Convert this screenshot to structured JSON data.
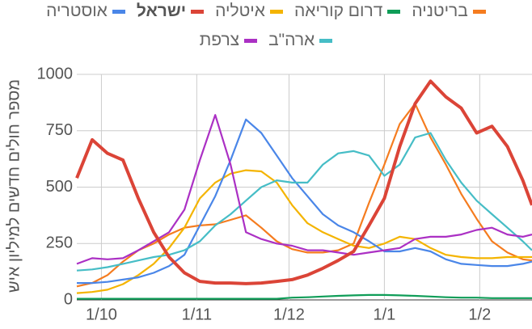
{
  "chart_data": {
    "type": "line",
    "y_axis_label": "מספר חולים חדשים למיליון איש",
    "x": [
      "23/9",
      "28/9",
      "3/10",
      "8/10",
      "13/10",
      "18/10",
      "23/10",
      "28/10",
      "2/11",
      "7/11",
      "12/11",
      "17/11",
      "22/11",
      "27/11",
      "2/12",
      "7/12",
      "12/12",
      "17/12",
      "22/12",
      "27/12",
      "1/1",
      "6/1",
      "11/1",
      "16/1",
      "21/1",
      "26/1",
      "31/1",
      "5/2",
      "10/2",
      "15/2",
      "18/2"
    ],
    "xlim": [
      "23/9",
      "18/2"
    ],
    "xticks": [
      "1/10",
      "1/11",
      "1/12",
      "1/1",
      "1/2"
    ],
    "ylim": [
      0,
      1000
    ],
    "yticks": [
      0,
      250,
      500,
      750,
      1000
    ],
    "grid": true,
    "series": [
      {
        "name": "בריטניה",
        "color": "#f57c1f",
        "values": [
          60,
          75,
          110,
          170,
          220,
          250,
          290,
          320,
          330,
          335,
          355,
          375,
          320,
          260,
          225,
          210,
          210,
          220,
          250,
          430,
          600,
          780,
          870,
          720,
          600,
          470,
          360,
          260,
          210,
          180,
          175
        ]
      },
      {
        "name": "דרום קוריאה",
        "color": "#0f9d58",
        "values": [
          5,
          5,
          5,
          5,
          5,
          5,
          5,
          5,
          5,
          5,
          5,
          5,
          5,
          5,
          10,
          12,
          15,
          18,
          20,
          22,
          22,
          20,
          18,
          15,
          12,
          10,
          10,
          8,
          8,
          8,
          8
        ]
      },
      {
        "name": "איטליה",
        "color": "#f4b400",
        "values": [
          30,
          35,
          45,
          70,
          110,
          160,
          230,
          320,
          450,
          520,
          560,
          575,
          570,
          520,
          420,
          340,
          300,
          270,
          240,
          230,
          250,
          280,
          270,
          230,
          200,
          190,
          185,
          185,
          190,
          190,
          190
        ]
      },
      {
        "name": "ישראל",
        "color": "#db4437",
        "bold": true,
        "values": [
          540,
          710,
          650,
          620,
          450,
          300,
          190,
          120,
          82,
          75,
          75,
          72,
          75,
          82,
          90,
          110,
          140,
          175,
          215,
          330,
          450,
          680,
          870,
          970,
          900,
          850,
          740,
          770,
          680,
          530,
          420
        ]
      },
      {
        "name": "אוסטריה",
        "color": "#4a86e8",
        "values": [
          75,
          75,
          80,
          90,
          100,
          120,
          150,
          200,
          330,
          460,
          620,
          800,
          740,
          640,
          540,
          460,
          380,
          330,
          300,
          260,
          215,
          215,
          230,
          215,
          180,
          160,
          155,
          150,
          150,
          160,
          170
        ]
      },
      {
        "name": "ארה\"ב",
        "color": "#46bdc6",
        "values": [
          130,
          135,
          145,
          160,
          175,
          190,
          200,
          220,
          260,
          330,
          380,
          440,
          500,
          530,
          520,
          520,
          600,
          650,
          660,
          640,
          550,
          600,
          720,
          740,
          620,
          520,
          440,
          380,
          320,
          260,
          220
        ]
      },
      {
        "name": "צרפת",
        "color": "#ab30c4",
        "values": [
          160,
          185,
          180,
          185,
          220,
          260,
          300,
          400,
          620,
          820,
          600,
          300,
          270,
          250,
          240,
          220,
          220,
          210,
          200,
          210,
          220,
          230,
          270,
          280,
          280,
          290,
          310,
          320,
          290,
          280,
          290
        ]
      }
    ]
  }
}
